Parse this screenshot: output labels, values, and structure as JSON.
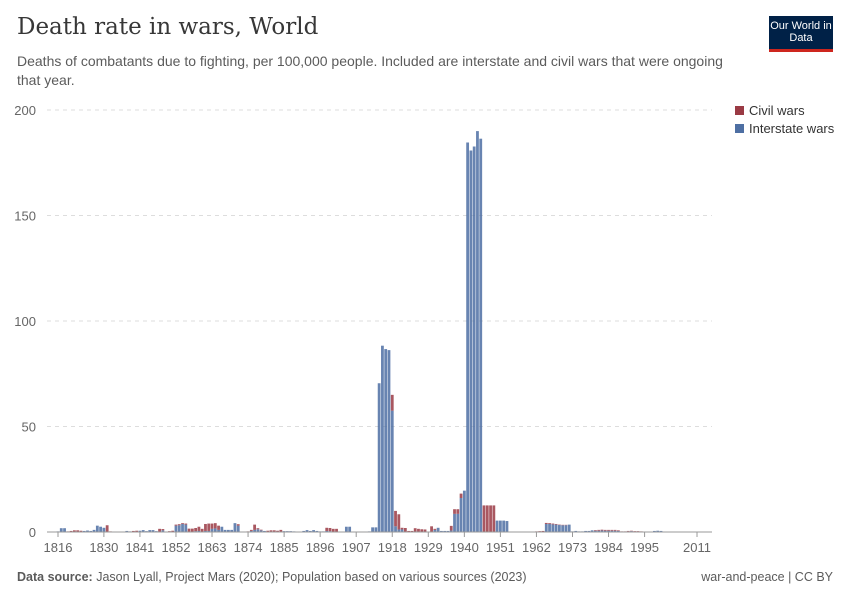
{
  "header": {
    "title": "Death rate in wars, World",
    "subtitle": "Deaths of combatants due to fighting, per 100,000 people. Included are interstate and civil wars that were ongoing that year.",
    "logo": "Our World in Data"
  },
  "footer": {
    "source_label": "Data source:",
    "source": "Jason Lyall, Project Mars (2020); Population based on various sources (2023)",
    "license": "war-and-peace | CC BY"
  },
  "colors": {
    "civil": "#9a3a44",
    "interstate": "#4e6fa3"
  },
  "chart_data": {
    "type": "bar",
    "stacked": true,
    "title": "Death rate in wars, World",
    "x_start": 1816,
    "x_end": 2011,
    "xticks": [
      "1816",
      "1830",
      "1841",
      "1852",
      "1863",
      "1874",
      "1885",
      "1896",
      "1907",
      "1918",
      "1929",
      "1940",
      "1951",
      "1962",
      "1973",
      "1984",
      "1995",
      "2011"
    ],
    "yticks": [
      "0",
      "50",
      "100",
      "150",
      "200"
    ],
    "ylim": [
      0,
      200
    ],
    "grid": "horizontal dashed",
    "legend": "top-right",
    "series": [
      {
        "name": "Civil wars",
        "values": [
          0,
          0,
          0,
          0.3,
          0.5,
          0.8,
          0.8,
          0.6,
          0,
          0,
          0,
          0,
          0,
          0,
          0,
          3.2,
          0.3,
          0.1,
          0.1,
          0.1,
          0.1,
          0,
          0,
          0.5,
          0.6,
          0,
          0,
          0,
          0,
          0,
          0,
          1.5,
          0.6,
          0,
          0.4,
          0.6,
          0.5,
          0.5,
          0.4,
          0.5,
          1.6,
          1.6,
          1.5,
          2.0,
          1.5,
          3.3,
          3.5,
          2.5,
          2.5,
          2.0,
          0,
          0,
          0,
          0,
          0,
          0.7,
          0,
          0,
          0.3,
          0.5,
          2.5,
          0.5,
          0.3,
          0,
          0.6,
          0.8,
          0.8,
          0.6,
          1.0,
          0,
          0,
          0,
          0,
          0,
          0,
          0,
          0,
          0,
          0,
          0,
          0,
          0,
          1.5,
          1.5,
          1.5,
          1.5,
          0,
          0,
          0,
          0,
          0,
          0,
          0,
          0,
          0,
          0,
          0,
          0,
          0,
          0,
          0,
          0,
          7.5,
          7.3,
          7.2,
          0.8,
          1.9,
          0.5,
          0.5,
          1.8,
          1.5,
          1.3,
          1.2,
          0,
          2.7,
          0.5,
          0,
          0,
          0,
          0,
          2.2,
          2.2,
          2.2,
          2.1,
          0,
          0,
          0,
          0,
          0,
          0,
          12.6,
          12.6,
          12.6,
          12.6,
          0,
          0,
          0,
          0,
          0,
          0,
          0,
          0,
          0,
          0,
          0,
          0,
          0.3,
          0.4,
          0.5,
          0.5,
          0.4,
          0.4,
          0.3,
          0.2,
          0.2,
          0.2,
          0,
          0,
          0,
          0,
          0,
          0,
          0,
          0,
          0.3,
          0.4,
          0.4,
          0.4,
          0.4,
          0.4,
          0.4,
          0.3,
          0.3,
          0.3,
          0.2,
          0.2,
          0.4,
          0.4,
          0.3,
          0.2,
          0.2,
          0.2,
          0,
          0,
          0,
          0.2,
          0.2,
          0.2,
          0.2,
          0.2,
          0.2,
          0.2,
          0.2,
          0.1,
          0.1,
          0.1
        ]
      },
      {
        "name": "Interstate wars",
        "values": [
          0.3,
          1.8,
          1.8,
          0,
          0,
          0,
          0,
          0,
          0.5,
          0.7,
          0.5,
          1.0,
          3.0,
          2.5,
          2.0,
          0,
          0,
          0.1,
          0.1,
          0.1,
          0.1,
          0.5,
          0.3,
          0,
          0,
          0.6,
          0.9,
          0.4,
          0.9,
          0.9,
          0.4,
          0,
          0.8,
          0.2,
          0,
          0,
          3.0,
          3.2,
          3.8,
          3.5,
          0,
          0,
          0.4,
          0.5,
          0,
          0.5,
          0.5,
          1.5,
          1.7,
          1.0,
          2.5,
          1.0,
          1.0,
          1.0,
          4.2,
          3.0,
          0.2,
          0.2,
          0,
          0.5,
          1.0,
          1.3,
          0.8,
          0.5,
          0,
          0,
          0,
          0,
          0,
          0.4,
          0.4,
          0.4,
          0.3,
          0.2,
          0,
          0.5,
          0.9,
          0.5,
          0.9,
          0.5,
          0.3,
          0.3,
          0.5,
          0.4,
          0,
          0,
          0.2,
          0.2,
          2.5,
          2.5,
          0.2,
          0.2,
          0.1,
          0.1,
          0.1,
          0.3,
          2.2,
          2.2,
          70.5,
          88.3,
          86.7,
          86.2,
          57.5,
          2.7,
          1.2,
          1.2,
          0,
          0,
          0,
          0,
          0,
          0,
          0,
          0.1,
          0,
          1.0,
          2.0,
          0.5,
          0.5,
          0.5,
          0.7,
          8.6,
          8.6,
          16.1,
          19.6,
          184.6,
          180.8,
          182.7,
          190.0,
          186.4,
          0,
          0,
          0,
          0,
          5.4,
          5.4,
          5.4,
          5.2,
          0.2,
          0.2,
          0.2,
          0.2,
          0.2,
          0.2,
          0.2,
          0.2,
          0,
          0,
          0,
          3.8,
          3.8,
          3.6,
          3.5,
          3.3,
          3.2,
          3.2,
          3.5,
          0.3,
          0.5,
          0.3,
          0.3,
          0.5,
          0.5,
          0.8,
          0.6,
          0.6,
          0.7,
          0.6,
          0.6,
          0.6,
          0.6,
          0.5,
          0,
          0,
          0.3,
          0.4,
          0,
          0,
          0,
          0,
          0,
          0,
          0.5,
          0.6,
          0.5,
          0,
          0,
          0,
          0,
          0,
          0,
          0,
          0,
          0,
          0,
          0
        ]
      }
    ]
  }
}
